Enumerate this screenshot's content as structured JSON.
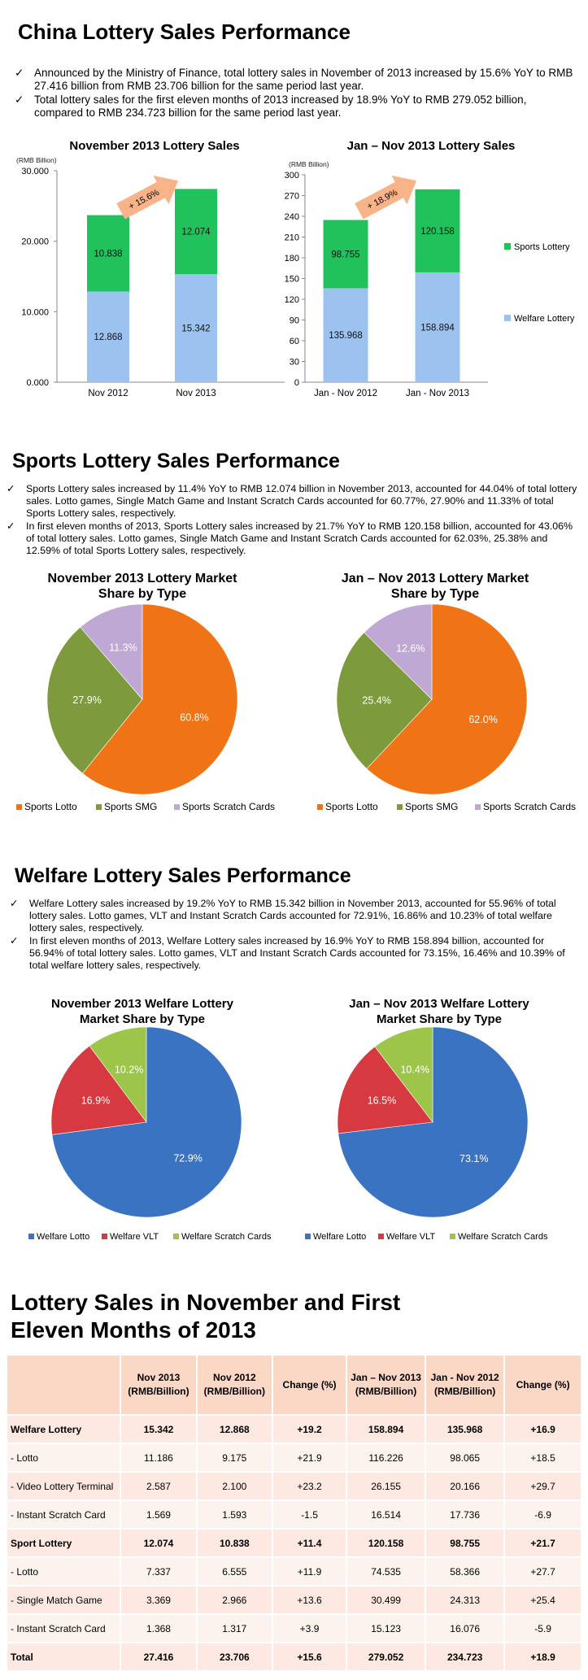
{
  "colors": {
    "sports_bar": "#1fc25b",
    "welfare_bar": "#9cc3ef",
    "arrow": "#f8b388",
    "sports_lotto": "#f07315",
    "sports_smg": "#7d9a3c",
    "sports_scratch": "#bfa9d4",
    "welfare_lotto": "#3a73c1",
    "welfare_vlt": "#d6393f",
    "welfare_scratch": "#9dc549",
    "table_header": "#fbd7c6"
  },
  "sections": {
    "china": {
      "title": "China Lottery Sales Performance",
      "bullets": [
        "Announced by the Ministry of Finance, total lottery sales in November of 2013 increased by 15.6% YoY to RMB 27.416 billion from RMB  23.706 billion for the same period last year.",
        "Total lottery sales for the first eleven months of 2013 increased by 18.9% YoY to RMB 279.052 billion, compared to RMB 234.723 billion for the same period last year."
      ]
    },
    "sports": {
      "title": "Sports Lottery Sales Performance",
      "bullets": [
        "Sports Lottery sales increased by 11.4% YoY to RMB 12.074 billion in November 2013, accounted for 44.04% of total lottery sales. Lotto games, Single Match Game and Instant Scratch Cards accounted for 60.77%, 27.90% and 11.33% of total Sports Lottery sales, respectively.",
        "In first eleven months of 2013, Sports Lottery sales increased by 21.7% YoY to RMB 120.158 billion, accounted for 43.06% of total lottery sales. Lotto games, Single Match Game and Instant Scratch Cards accounted for 62.03%, 25.38% and 12.59% of total Sports Lottery sales, respectively."
      ]
    },
    "welfare": {
      "title": "Welfare Lottery Sales Performance",
      "bullets": [
        "Welfare Lottery sales increased by 19.2% YoY to RMB 15.342 billion in November 2013, accounted for 55.96% of total lottery sales. Lotto games, VLT and Instant Scratch Cards accounted for 72.91%, 16.86% and 10.23% of total welfare lottery sales, respectively.",
        "In first eleven months of 2013, Welfare Lottery sales increased by 16.9% YoY to RMB 158.894 billion, accounted for 56.94% of total lottery sales. Lotto games, VLT and Instant Scratch Cards accounted for 73.15%, 16.46% and 10.39% of total welfare lottery sales, respectively."
      ]
    },
    "table": {
      "title_line1": "Lottery Sales in November and First",
      "title_line2": "Eleven Months of 2013"
    }
  },
  "chart_data": [
    {
      "type": "bar",
      "title": "November 2013 Lottery Sales",
      "unit_label": "(RMB Billion)",
      "categories": [
        "Nov 2012",
        "Nov 2013"
      ],
      "series": [
        {
          "name": "Welfare Lottery",
          "values": [
            12.868,
            15.342
          ],
          "labels": [
            "12.868",
            "15.342"
          ]
        },
        {
          "name": "Sports Lottery",
          "values": [
            10.838,
            12.074
          ],
          "labels": [
            "10.838",
            "12.074"
          ]
        }
      ],
      "ylim": [
        0,
        30
      ],
      "yticks": [
        0,
        10,
        20,
        30
      ],
      "ytick_labels": [
        "0.000",
        "10.000",
        "20.000",
        "30.000"
      ],
      "annotation": "+ 15.6%",
      "legend": "none"
    },
    {
      "type": "bar",
      "title": "Jan – Nov 2013 Lottery Sales",
      "unit_label": "(RMB Billion)",
      "categories": [
        "Jan - Nov 2012",
        "Jan - Nov 2013"
      ],
      "series": [
        {
          "name": "Welfare Lottery",
          "values": [
            135.968,
            158.894
          ],
          "labels": [
            "135.968",
            "158.894"
          ]
        },
        {
          "name": "Sports Lottery",
          "values": [
            98.755,
            120.158
          ],
          "labels": [
            "98.755",
            "120.158"
          ]
        }
      ],
      "ylim": [
        0,
        300
      ],
      "yticks": [
        0,
        30,
        60,
        90,
        120,
        150,
        180,
        210,
        240,
        270,
        300
      ],
      "ytick_labels": [
        "0",
        "30",
        "60",
        "90",
        "120",
        "150",
        "180",
        "210",
        "240",
        "270",
        "300"
      ],
      "annotation": "+ 18.9%",
      "legend": "right"
    },
    {
      "type": "pie",
      "title_line1": "November 2013 Lottery Market",
      "title_line2": "Share by Type",
      "categories": [
        "Sports Lotto",
        "Sports SMG",
        "Sports Scratch Cards"
      ],
      "values": [
        60.8,
        27.9,
        11.3
      ],
      "labels": [
        "60.8%",
        "27.9%",
        "11.3%"
      ],
      "legend": "bottom"
    },
    {
      "type": "pie",
      "title_line1": "Jan – Nov 2013 Lottery Market",
      "title_line2": "Share by Type",
      "categories": [
        "Sports Lotto",
        "Sports SMG",
        "Sports Scratch Cards"
      ],
      "values": [
        62.0,
        25.4,
        12.6
      ],
      "labels": [
        "62.0%",
        "25.4%",
        "12.6%"
      ],
      "legend": "bottom"
    },
    {
      "type": "pie",
      "title_line1": "November 2013 Welfare Lottery",
      "title_line2": "Market Share by Type",
      "categories": [
        "Welfare Lotto",
        "Welfare VLT",
        "Welfare Scratch Cards"
      ],
      "values": [
        72.9,
        16.9,
        10.2
      ],
      "labels": [
        "72.9%",
        "16.9%",
        "10.2%"
      ],
      "legend": "bottom"
    },
    {
      "type": "pie",
      "title_line1": "Jan – Nov 2013 Welfare Lottery",
      "title_line2": "Market Share by Type",
      "categories": [
        "Welfare Lotto",
        "Welfare VLT",
        "Welfare Scratch Cards"
      ],
      "values": [
        73.1,
        16.5,
        10.4
      ],
      "labels": [
        "73.1%",
        "16.5%",
        "10.4%"
      ],
      "legend": "bottom"
    },
    {
      "type": "table",
      "headers": [
        "",
        "Nov 2013 (RMB/Billion)",
        "Nov 2012 (RMB/Billion)",
        "Change (%)",
        "Jan – Nov 2013 (RMB/Billion)",
        "Jan - Nov 2012 (RMB/Billion)",
        "Change (%)"
      ],
      "rows": [
        {
          "bold": true,
          "cells": [
            "Welfare Lottery",
            "15.342",
            "12.868",
            "+19.2",
            "158.894",
            "135.968",
            "+16.9"
          ]
        },
        {
          "bold": false,
          "cells": [
            "- Lotto",
            "11.186",
            "9.175",
            "+21.9",
            "116.226",
            "98.065",
            "+18.5"
          ]
        },
        {
          "bold": false,
          "cells": [
            "- Video Lottery Terminal",
            "2.587",
            "2.100",
            "+23.2",
            "26.155",
            "20.166",
            "+29.7"
          ]
        },
        {
          "bold": false,
          "cells": [
            "- Instant Scratch Card",
            "1.569",
            "1.593",
            "-1.5",
            "16.514",
            "17.736",
            "-6.9"
          ]
        },
        {
          "bold": true,
          "cells": [
            "Sport Lottery",
            "12.074",
            "10.838",
            "+11.4",
            "120.158",
            "98.755",
            "+21.7"
          ]
        },
        {
          "bold": false,
          "cells": [
            "- Lotto",
            "7.337",
            "6.555",
            "+11.9",
            "74.535",
            "58.366",
            "+27.7"
          ]
        },
        {
          "bold": false,
          "cells": [
            "- Single Match Game",
            "3.369",
            "2.966",
            "+13.6",
            "30.499",
            "24.313",
            "+25.4"
          ]
        },
        {
          "bold": false,
          "cells": [
            "- Instant Scratch Card",
            "1.368",
            "1.317",
            "+3.9",
            "15.123",
            "16.076",
            "-5.9"
          ]
        },
        {
          "bold": true,
          "cells": [
            "Total",
            "27.416",
            "23.706",
            "+15.6",
            "279.052",
            "234.723",
            "+18.9"
          ]
        }
      ]
    }
  ]
}
